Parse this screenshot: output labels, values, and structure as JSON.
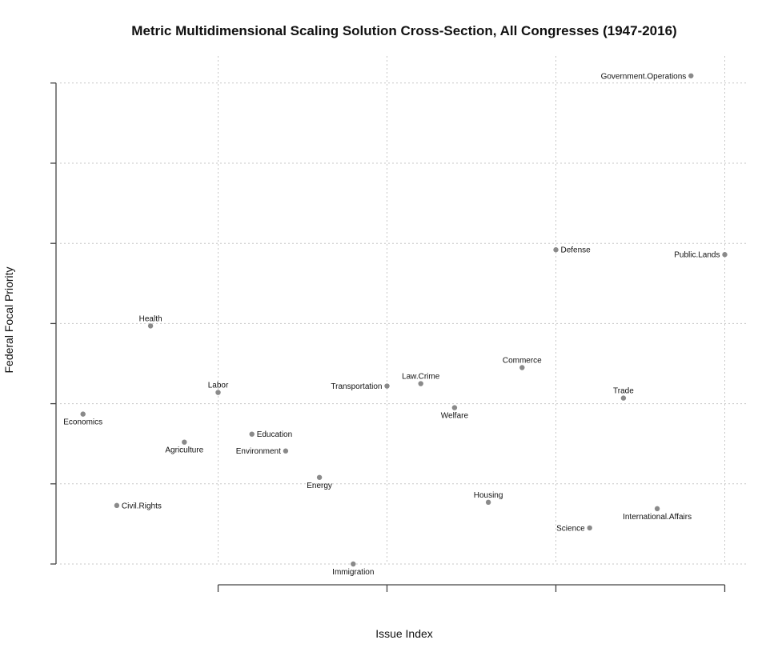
{
  "chart_data": {
    "type": "scatter",
    "title": "Metric Multidimensional Scaling Solution Cross-Section, All Congresses (1947-2016)",
    "xlabel": "Issue Index",
    "ylabel": "Federal Focal Priority",
    "xlim": [
      0,
      20
    ],
    "ylim": [
      0,
      6
    ],
    "x_ticks": [
      5,
      10,
      15,
      20
    ],
    "y_ticks": [
      0,
      1,
      2,
      3,
      4,
      5,
      6
    ],
    "tick_labels_shown": false,
    "grid": true,
    "points": [
      {
        "label": "Economics",
        "x": 1,
        "y": 1.87,
        "label_pos": "below"
      },
      {
        "label": "Civil.Rights",
        "x": 2,
        "y": 0.73,
        "label_pos": "right"
      },
      {
        "label": "Health",
        "x": 3,
        "y": 2.97,
        "label_pos": "above"
      },
      {
        "label": "Agriculture",
        "x": 4,
        "y": 1.52,
        "label_pos": "below"
      },
      {
        "label": "Labor",
        "x": 5,
        "y": 2.14,
        "label_pos": "above"
      },
      {
        "label": "Education",
        "x": 6,
        "y": 1.62,
        "label_pos": "right"
      },
      {
        "label": "Environment",
        "x": 7,
        "y": 1.41,
        "label_pos": "left"
      },
      {
        "label": "Energy",
        "x": 8,
        "y": 1.08,
        "label_pos": "below"
      },
      {
        "label": "Immigration",
        "x": 9,
        "y": 0.0,
        "label_pos": "below"
      },
      {
        "label": "Transportation",
        "x": 10,
        "y": 2.22,
        "label_pos": "left"
      },
      {
        "label": "Law.Crime",
        "x": 11,
        "y": 2.25,
        "label_pos": "above"
      },
      {
        "label": "Welfare",
        "x": 12,
        "y": 1.95,
        "label_pos": "below"
      },
      {
        "label": "Housing",
        "x": 13,
        "y": 0.77,
        "label_pos": "above"
      },
      {
        "label": "Commerce",
        "x": 14,
        "y": 2.45,
        "label_pos": "above"
      },
      {
        "label": "Defense",
        "x": 15,
        "y": 3.92,
        "label_pos": "right"
      },
      {
        "label": "Science",
        "x": 16,
        "y": 0.45,
        "label_pos": "left"
      },
      {
        "label": "Trade",
        "x": 17,
        "y": 2.07,
        "label_pos": "above"
      },
      {
        "label": "International.Affairs",
        "x": 18,
        "y": 0.69,
        "label_pos": "below"
      },
      {
        "label": "Government.Operations",
        "x": 19,
        "y": 6.09,
        "label_pos": "left"
      },
      {
        "label": "Public.Lands",
        "x": 20,
        "y": 3.86,
        "label_pos": "left"
      }
    ]
  }
}
